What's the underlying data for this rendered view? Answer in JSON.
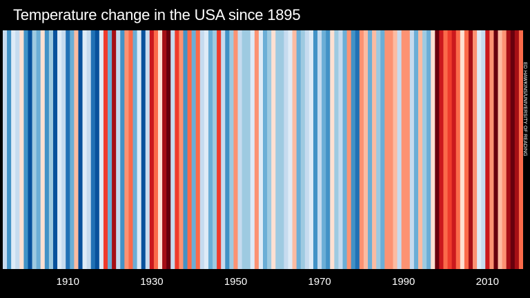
{
  "title": "Temperature change in the USA since 1895",
  "credit": "ED HAWKINS/UNIVERSITY OF READING",
  "chart_data": {
    "type": "heatmap",
    "title": "Temperature change in the USA since 1895",
    "x_range": [
      1895,
      2018
    ],
    "x_ticks": [
      "1910",
      "1930",
      "1950",
      "1970",
      "1990",
      "2010"
    ],
    "grid": false,
    "legend": "none",
    "color_scale": [
      "#08306b",
      "#08519c",
      "#2171b5",
      "#4292c6",
      "#6baed6",
      "#9ecae1",
      "#c6dbef",
      "#deebf7",
      "#fee0d2",
      "#fcbba1",
      "#fc9272",
      "#fb6a4a",
      "#ef3b2c",
      "#cb181d",
      "#a50f15",
      "#67000d"
    ],
    "years": [
      1895,
      1896,
      1897,
      1898,
      1899,
      1900,
      1901,
      1902,
      1903,
      1904,
      1905,
      1906,
      1907,
      1908,
      1909,
      1910,
      1911,
      1912,
      1913,
      1914,
      1915,
      1916,
      1917,
      1918,
      1919,
      1920,
      1921,
      1922,
      1923,
      1924,
      1925,
      1926,
      1927,
      1928,
      1929,
      1930,
      1931,
      1932,
      1933,
      1934,
      1935,
      1936,
      1937,
      1938,
      1939,
      1940,
      1941,
      1942,
      1943,
      1944,
      1945,
      1946,
      1947,
      1948,
      1949,
      1950,
      1951,
      1952,
      1953,
      1954,
      1955,
      1956,
      1957,
      1958,
      1959,
      1960,
      1961,
      1962,
      1963,
      1964,
      1965,
      1966,
      1967,
      1968,
      1969,
      1970,
      1971,
      1972,
      1973,
      1974,
      1975,
      1976,
      1977,
      1978,
      1979,
      1980,
      1981,
      1982,
      1983,
      1984,
      1985,
      1986,
      1987,
      1988,
      1989,
      1990,
      1991,
      1992,
      1993,
      1994,
      1995,
      1996,
      1997,
      1998,
      1999,
      2000,
      2001,
      2002,
      2003,
      2004,
      2005,
      2006,
      2007,
      2008,
      2009,
      2010,
      2011,
      2012,
      2013,
      2014,
      2015,
      2016,
      2017,
      2018
    ],
    "anomaly_level": [
      6,
      3,
      7,
      6,
      8,
      3,
      1,
      5,
      4,
      8,
      3,
      5,
      1,
      7,
      6,
      2,
      4,
      9,
      1,
      7,
      6,
      2,
      1,
      7,
      12,
      4,
      14,
      6,
      3,
      10,
      11,
      4,
      7,
      1,
      6,
      13,
      11,
      8,
      14,
      15,
      6,
      12,
      10,
      3,
      11,
      4,
      11,
      6,
      7,
      4,
      5,
      12,
      6,
      3,
      5,
      10,
      6,
      5,
      5,
      7,
      10,
      7,
      4,
      5,
      8,
      5,
      5,
      6,
      7,
      9,
      4,
      5,
      6,
      7,
      3,
      6,
      4,
      3,
      8,
      5,
      6,
      4,
      10,
      3,
      2,
      10,
      9,
      4,
      9,
      5,
      4,
      10,
      10,
      9,
      6,
      10,
      10,
      6,
      4,
      9,
      5,
      4,
      8,
      15,
      13,
      11,
      12,
      13,
      11,
      8,
      11,
      14,
      10,
      7,
      6,
      13,
      10,
      15,
      9,
      10,
      14,
      15,
      14,
      11
    ]
  }
}
